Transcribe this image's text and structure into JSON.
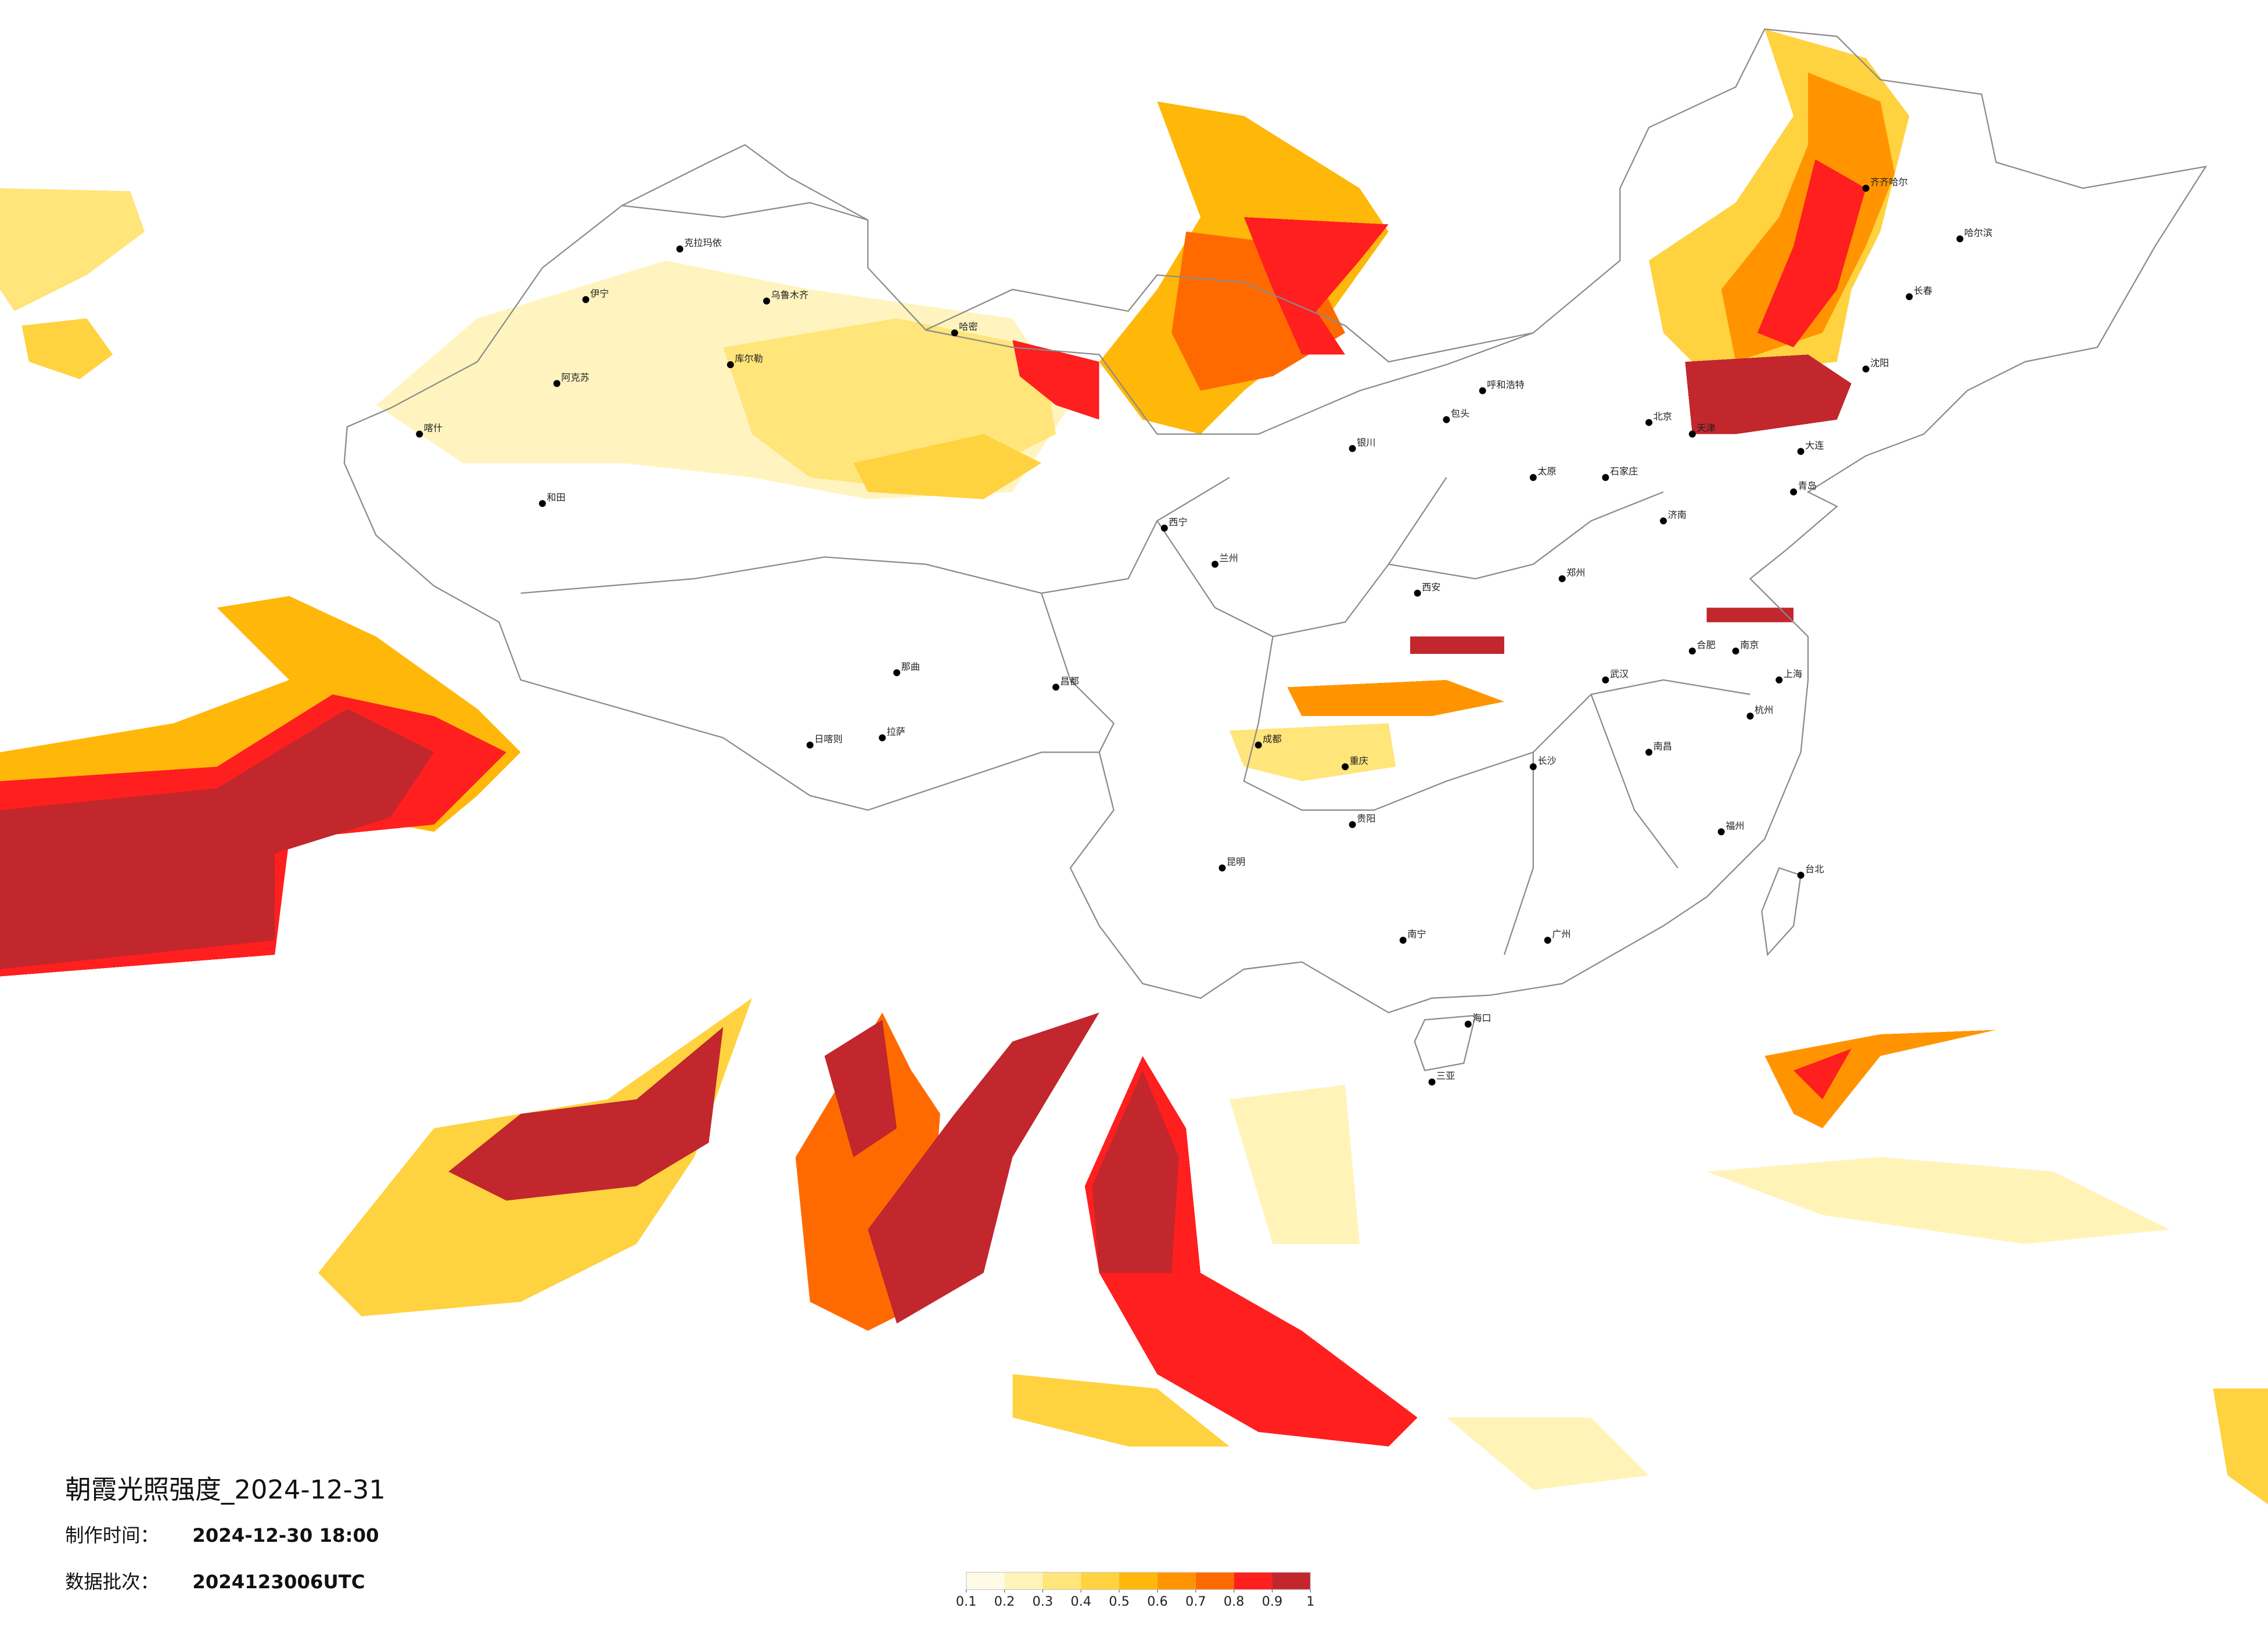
{
  "title": "朝霞光照强度_2024-12-31",
  "made_time_label": "制作时间：",
  "made_time": "2024-12-30 18:00",
  "batch_label": "数据批次：",
  "batch": "2024123006UTC",
  "colorbar": {
    "bounds": [
      0.1,
      0.2,
      0.3,
      0.4,
      0.5,
      0.6,
      0.7,
      0.8,
      0.9,
      1
    ],
    "colors": [
      "#fffbe6",
      "#fff3b8",
      "#ffe57a",
      "#ffd23f",
      "#ffb70a",
      "#ff9400",
      "#ff6a00",
      "#ff1f1f",
      "#c1272d"
    ]
  },
  "cities": [
    "伊宁",
    "喀什",
    "和田",
    "阿克苏",
    "库尔勒",
    "乌鲁木齐",
    "克拉玛依",
    "哈密",
    "日喀则",
    "拉萨",
    "那曲",
    "西宁",
    "兰州",
    "银川",
    "呼和浩特",
    "北京",
    "天津",
    "石家庄",
    "太原",
    "西安",
    "郑州",
    "济南",
    "青岛",
    "大连",
    "沈阳",
    "长春",
    "哈尔滨",
    "成都",
    "重庆",
    "贵阳",
    "昆明",
    "南宁",
    "长沙",
    "武汉",
    "南昌",
    "合肥",
    "南京",
    "上海",
    "杭州",
    "福州",
    "广州",
    "海口",
    "三亚",
    "台北",
    "昌都",
    "齐齐哈尔",
    "包头"
  ]
}
